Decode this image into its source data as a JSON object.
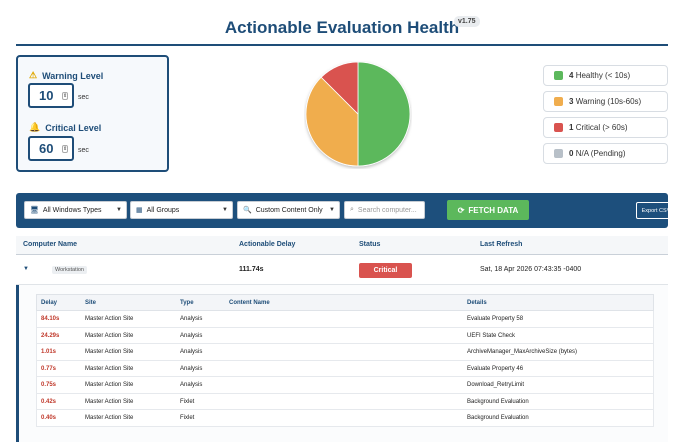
{
  "header": {
    "title": "Actionable Evaluation Health",
    "version": "v1.75"
  },
  "thresholds": {
    "warning": {
      "label": "Warning Level",
      "value": "10",
      "unit": "sec",
      "icon": "warning-triangle-icon"
    },
    "critical": {
      "label": "Critical Level",
      "value": "60",
      "unit": "sec",
      "icon": "critical-bell-icon"
    }
  },
  "colors": {
    "healthy": "#5cb85c",
    "warning": "#f0ad4e",
    "critical": "#d9534f",
    "na": "#b8c0c8",
    "brand": "#1e4d78"
  },
  "chart_data": {
    "type": "pie",
    "categories": [
      "Healthy (< 10s)",
      "Warning (10s-60s)",
      "Critical (> 60s)",
      "N/A (Pending)"
    ],
    "values": [
      4,
      3,
      1,
      0
    ]
  },
  "legend": [
    {
      "count": "4",
      "label": "Healthy (< 10s)"
    },
    {
      "count": "3",
      "label": "Warning (10s-60s)"
    },
    {
      "count": "1",
      "label": "Critical (> 60s)"
    },
    {
      "count": "0",
      "label": "N/A (Pending)"
    }
  ],
  "toolbar": {
    "types_select": "All Windows Types",
    "groups_select": "All Groups",
    "content_select": "Custom Content Only",
    "search_placeholder": "Search computer...",
    "fetch_label": "FETCH DATA",
    "export_label": "Export CSV"
  },
  "table": {
    "headers": {
      "computer": "Computer Name",
      "delay": "Actionable Delay",
      "status": "Status",
      "refresh": "Last Refresh"
    },
    "row": {
      "computer_tag": "Workstation",
      "delay": "111.74s",
      "status": "Critical",
      "refresh": "Sat, 18 Apr 2026 07:43:35 -0400"
    }
  },
  "details": {
    "headers": {
      "delay": "Delay",
      "site": "Site",
      "type": "Type",
      "name": "Content Name",
      "details": "Details"
    },
    "rows": [
      {
        "delay": "84.10s",
        "site": "Master Action Site",
        "type": "Analysis",
        "details": "Evaluate Property 58"
      },
      {
        "delay": "24.29s",
        "site": "Master Action Site",
        "type": "Analysis",
        "details": "UEFI State Check"
      },
      {
        "delay": "1.01s",
        "site": "Master Action Site",
        "type": "Analysis",
        "details": "ArchiveManager_MaxArchiveSize (bytes)"
      },
      {
        "delay": "0.77s",
        "site": "Master Action Site",
        "type": "Analysis",
        "details": "Evaluate Property 46"
      },
      {
        "delay": "0.75s",
        "site": "Master Action Site",
        "type": "Analysis",
        "details": "Download_RetryLimit"
      },
      {
        "delay": "0.42s",
        "site": "Master Action Site",
        "type": "Fixlet",
        "details": "Background Evaluation"
      },
      {
        "delay": "0.40s",
        "site": "Master Action Site",
        "type": "Fixlet",
        "details": "Background Evaluation"
      }
    ]
  }
}
